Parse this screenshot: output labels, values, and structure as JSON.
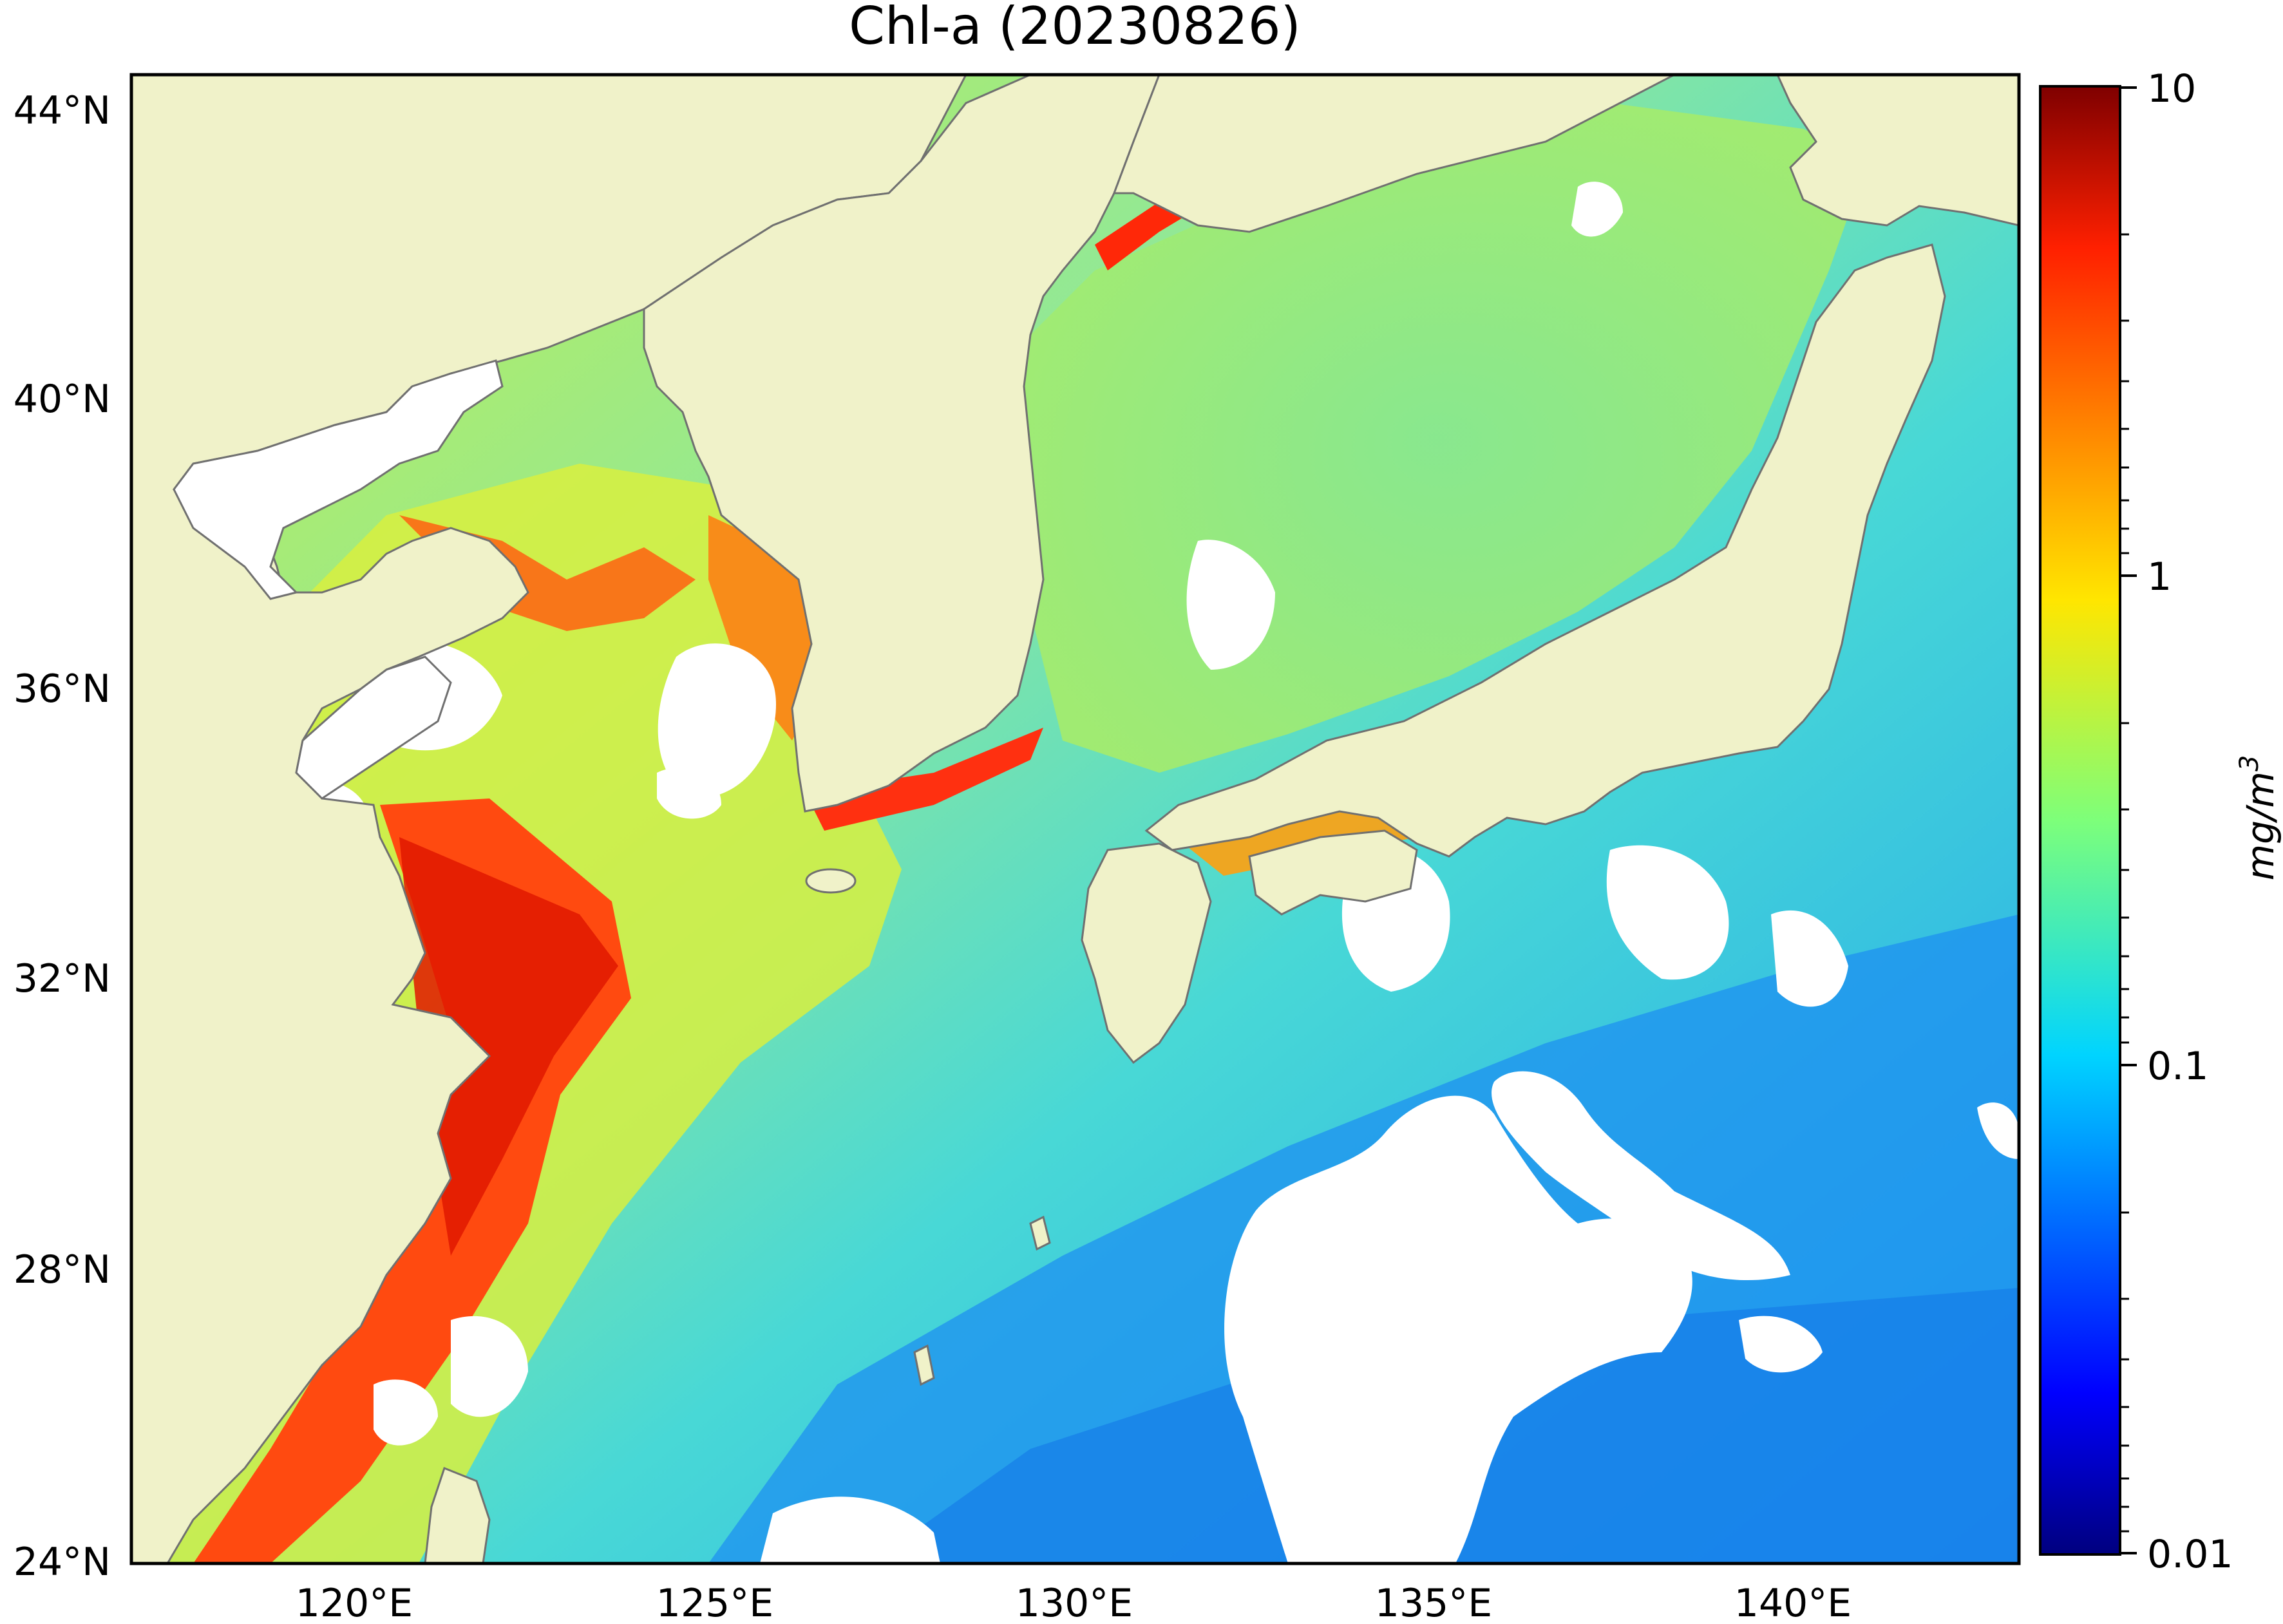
{
  "title": "Chl-a (20230826)",
  "map": {
    "lat_ticks": [
      "44°N",
      "40°N",
      "36°N",
      "32°N",
      "28°N",
      "24°N"
    ],
    "lon_ticks": [
      "120°E",
      "125°E",
      "130°E",
      "135°E",
      "140°E"
    ],
    "extent": {
      "lon": [
        117,
        143.3
      ],
      "lat": [
        24,
        44.5
      ]
    }
  },
  "colorbar": {
    "label": "mg/m",
    "label_exponent": "3",
    "ticks": [
      "10",
      "1",
      "0.1",
      "0.01"
    ],
    "scale": "log",
    "range": [
      0.01,
      10
    ],
    "colormap": "jet"
  },
  "colors": {
    "land": "#f0f2c9",
    "coastline": "#707070",
    "cloud": "#ffffff"
  }
}
